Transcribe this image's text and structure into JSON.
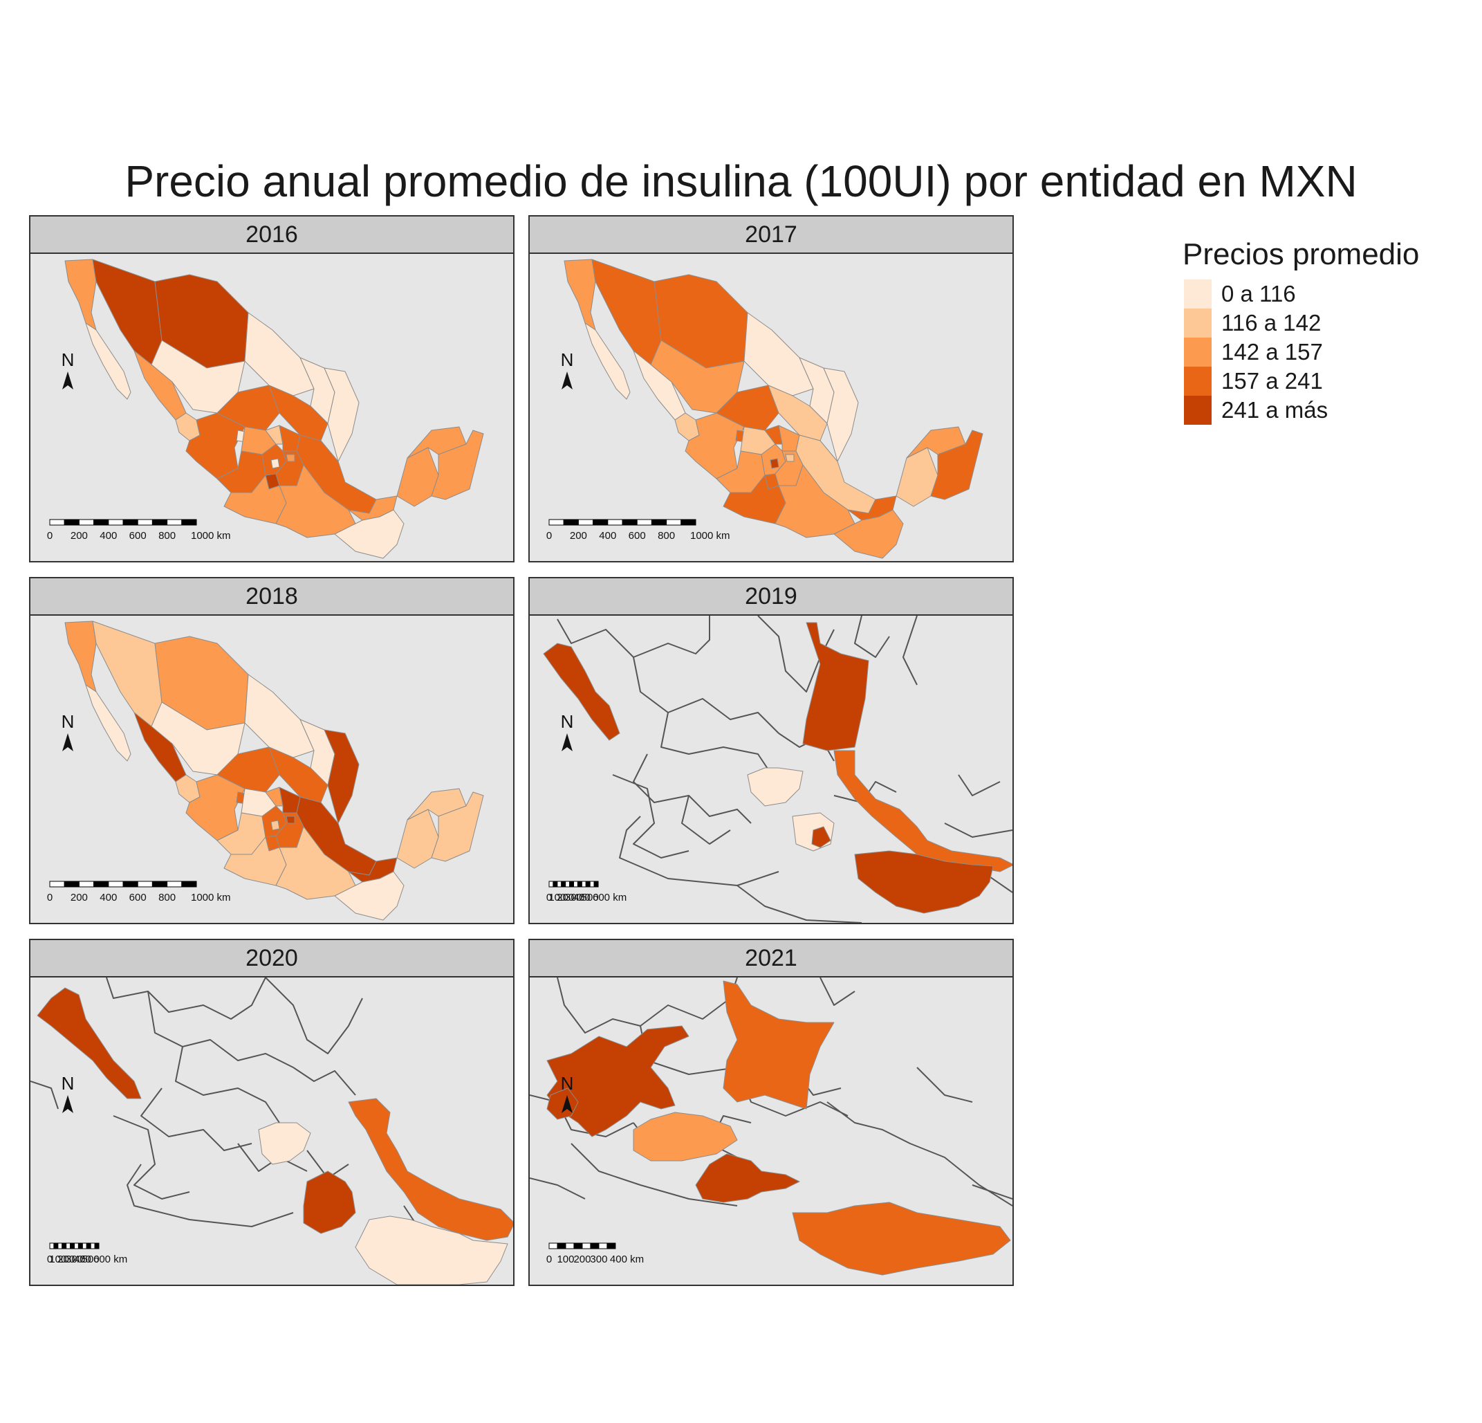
{
  "title": "Precio anual promedio de insulina (100UI) por entidad en MXN",
  "colors": {
    "c1": "#fde9d5",
    "c2": "#fdc896",
    "c3": "#fc9a50",
    "c4": "#ea6617",
    "c5": "#c44103",
    "land": "#e6e6e6",
    "border": "#7f7f7f",
    "strip": "#cccccc"
  },
  "legend": {
    "title": "Precios promedio",
    "items": [
      {
        "label": "0 a 116",
        "class": "c1"
      },
      {
        "label": "116 a 142",
        "class": "c2"
      },
      {
        "label": "142 a 157",
        "class": "c3"
      },
      {
        "label": "157 a 241",
        "class": "c4"
      },
      {
        "label": "241 a más",
        "class": "c5"
      }
    ]
  },
  "panels": [
    {
      "year": "2016",
      "north": "N",
      "scale_labels": [
        "0",
        "200",
        "400",
        "600",
        "800",
        "1000 km"
      ]
    },
    {
      "year": "2017",
      "north": "N",
      "scale_labels": [
        "0",
        "200",
        "400",
        "600",
        "800",
        "1000 km"
      ]
    },
    {
      "year": "2018",
      "north": "N",
      "scale_labels": [
        "0",
        "200",
        "400",
        "600",
        "800",
        "1000 km"
      ]
    },
    {
      "year": "2019",
      "north": "N",
      "scale_labels": [
        "0",
        "100",
        "200",
        "300",
        "400",
        "500",
        "600 km"
      ]
    },
    {
      "year": "2020",
      "north": "N",
      "scale_labels": [
        "0",
        "100",
        "200",
        "300",
        "400",
        "500",
        "600 km"
      ]
    },
    {
      "year": "2021",
      "north": "N",
      "scale_labels": [
        "0",
        "100",
        "200",
        "300",
        "400 km"
      ]
    }
  ]
}
